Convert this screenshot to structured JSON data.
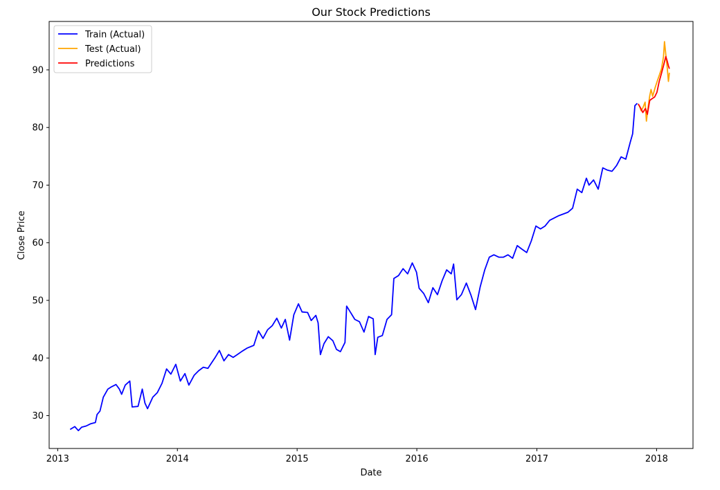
{
  "chart_data": {
    "type": "line",
    "title": "Our Stock Predictions",
    "xlabel": "Date",
    "ylabel": "Close Price",
    "xlim": [
      "2012-12-06",
      "2018-04-22"
    ],
    "ylim": [
      24.3,
      98.4
    ],
    "x_ticks": [
      "2013",
      "2014",
      "2015",
      "2016",
      "2017",
      "2018"
    ],
    "y_ticks": [
      30,
      40,
      50,
      60,
      70,
      80,
      90
    ],
    "grid": false,
    "legend_position": "top-left",
    "series": [
      {
        "name": "Train (Actual)",
        "color": "#0000ff",
        "points": [
          [
            "2013-02-08",
            27.6
          ],
          [
            "2013-02-22",
            28.1
          ],
          [
            "2013-03-05",
            27.4
          ],
          [
            "2013-03-15",
            28.0
          ],
          [
            "2013-03-29",
            28.2
          ],
          [
            "2013-04-12",
            28.6
          ],
          [
            "2013-04-26",
            28.8
          ],
          [
            "2013-05-01",
            30.2
          ],
          [
            "2013-05-10",
            30.8
          ],
          [
            "2013-05-20",
            33.2
          ],
          [
            "2013-06-03",
            34.6
          ],
          [
            "2013-06-14",
            35.0
          ],
          [
            "2013-06-28",
            35.4
          ],
          [
            "2013-07-08",
            34.6
          ],
          [
            "2013-07-15",
            33.7
          ],
          [
            "2013-07-26",
            35.3
          ],
          [
            "2013-08-09",
            36.0
          ],
          [
            "2013-08-16",
            31.5
          ],
          [
            "2013-09-03",
            31.6
          ],
          [
            "2013-09-16",
            34.6
          ],
          [
            "2013-09-24",
            32.2
          ],
          [
            "2013-10-02",
            31.2
          ],
          [
            "2013-10-18",
            33.2
          ],
          [
            "2013-11-01",
            34.0
          ],
          [
            "2013-11-15",
            35.6
          ],
          [
            "2013-11-29",
            38.1
          ],
          [
            "2013-12-12",
            37.2
          ],
          [
            "2013-12-27",
            38.9
          ],
          [
            "2014-01-10",
            36.0
          ],
          [
            "2014-01-24",
            37.3
          ],
          [
            "2014-02-05",
            35.3
          ],
          [
            "2014-02-21",
            37.0
          ],
          [
            "2014-03-07",
            37.8
          ],
          [
            "2014-03-21",
            38.4
          ],
          [
            "2014-04-04",
            38.2
          ],
          [
            "2014-04-25",
            40.0
          ],
          [
            "2014-05-09",
            41.3
          ],
          [
            "2014-05-23",
            39.5
          ],
          [
            "2014-06-06",
            40.6
          ],
          [
            "2014-06-20",
            40.1
          ],
          [
            "2014-07-03",
            40.6
          ],
          [
            "2014-07-18",
            41.2
          ],
          [
            "2014-08-01",
            41.7
          ],
          [
            "2014-08-22",
            42.2
          ],
          [
            "2014-09-05",
            44.7
          ],
          [
            "2014-09-19",
            43.4
          ],
          [
            "2014-10-03",
            44.9
          ],
          [
            "2014-10-17",
            45.6
          ],
          [
            "2014-10-31",
            46.9
          ],
          [
            "2014-11-14",
            45.2
          ],
          [
            "2014-11-26",
            46.7
          ],
          [
            "2014-12-09",
            43.1
          ],
          [
            "2014-12-22",
            47.5
          ],
          [
            "2015-01-05",
            49.4
          ],
          [
            "2015-01-16",
            48.0
          ],
          [
            "2015-02-02",
            47.9
          ],
          [
            "2015-02-13",
            46.5
          ],
          [
            "2015-02-27",
            47.4
          ],
          [
            "2015-03-06",
            46.1
          ],
          [
            "2015-03-13",
            40.6
          ],
          [
            "2015-03-24",
            42.5
          ],
          [
            "2015-04-06",
            43.7
          ],
          [
            "2015-04-20",
            43.0
          ],
          [
            "2015-05-01",
            41.5
          ],
          [
            "2015-05-13",
            41.1
          ],
          [
            "2015-05-27",
            42.7
          ],
          [
            "2015-06-01",
            49.0
          ],
          [
            "2015-06-12",
            48.0
          ],
          [
            "2015-06-26",
            46.7
          ],
          [
            "2015-07-10",
            46.3
          ],
          [
            "2015-07-24",
            44.5
          ],
          [
            "2015-08-07",
            47.2
          ],
          [
            "2015-08-21",
            46.8
          ],
          [
            "2015-08-27",
            40.6
          ],
          [
            "2015-09-04",
            43.6
          ],
          [
            "2015-09-18",
            43.9
          ],
          [
            "2015-10-02",
            46.7
          ],
          [
            "2015-10-16",
            47.5
          ],
          [
            "2015-10-23",
            53.8
          ],
          [
            "2015-11-06",
            54.3
          ],
          [
            "2015-11-20",
            55.5
          ],
          [
            "2015-12-04",
            54.6
          ],
          [
            "2015-12-18",
            56.5
          ],
          [
            "2015-12-31",
            54.9
          ],
          [
            "2016-01-08",
            52.1
          ],
          [
            "2016-01-22",
            51.2
          ],
          [
            "2016-02-05",
            49.6
          ],
          [
            "2016-02-19",
            52.2
          ],
          [
            "2016-03-04",
            51.0
          ],
          [
            "2016-03-18",
            53.4
          ],
          [
            "2016-04-01",
            55.3
          ],
          [
            "2016-04-15",
            54.6
          ],
          [
            "2016-04-22",
            56.3
          ],
          [
            "2016-05-02",
            50.1
          ],
          [
            "2016-05-16",
            51.0
          ],
          [
            "2016-05-31",
            53.0
          ],
          [
            "2016-06-14",
            50.9
          ],
          [
            "2016-06-28",
            48.4
          ],
          [
            "2016-07-12",
            52.3
          ],
          [
            "2016-07-26",
            55.3
          ],
          [
            "2016-08-09",
            57.5
          ],
          [
            "2016-08-23",
            57.9
          ],
          [
            "2016-09-07",
            57.5
          ],
          [
            "2016-09-21",
            57.5
          ],
          [
            "2016-10-05",
            57.9
          ],
          [
            "2016-10-19",
            57.3
          ],
          [
            "2016-11-02",
            59.5
          ],
          [
            "2016-11-16",
            58.9
          ],
          [
            "2016-12-01",
            58.3
          ],
          [
            "2016-12-15",
            60.3
          ],
          [
            "2016-12-29",
            62.9
          ],
          [
            "2017-01-12",
            62.4
          ],
          [
            "2017-01-26",
            62.9
          ],
          [
            "2017-02-09",
            63.9
          ],
          [
            "2017-02-23",
            64.3
          ],
          [
            "2017-03-09",
            64.7
          ],
          [
            "2017-03-23",
            65.0
          ],
          [
            "2017-04-06",
            65.3
          ],
          [
            "2017-04-20",
            66.0
          ],
          [
            "2017-05-04",
            69.3
          ],
          [
            "2017-05-18",
            68.7
          ],
          [
            "2017-06-01",
            71.2
          ],
          [
            "2017-06-09",
            70.0
          ],
          [
            "2017-06-23",
            70.9
          ],
          [
            "2017-07-07",
            69.3
          ],
          [
            "2017-07-21",
            73.0
          ],
          [
            "2017-08-04",
            72.6
          ],
          [
            "2017-08-18",
            72.4
          ],
          [
            "2017-09-01",
            73.4
          ],
          [
            "2017-09-15",
            74.9
          ],
          [
            "2017-09-29",
            74.5
          ],
          [
            "2017-10-13",
            77.5
          ],
          [
            "2017-10-20",
            78.9
          ],
          [
            "2017-10-27",
            83.8
          ],
          [
            "2017-11-03",
            84.2
          ]
        ]
      },
      {
        "name": "Test (Actual)",
        "color": "#ffa500",
        "points": [
          [
            "2017-11-06",
            84.0
          ],
          [
            "2017-11-10",
            83.7
          ],
          [
            "2017-11-15",
            82.9
          ],
          [
            "2017-11-20",
            83.4
          ],
          [
            "2017-11-27",
            84.4
          ],
          [
            "2017-12-01",
            81.1
          ],
          [
            "2017-12-05",
            83.0
          ],
          [
            "2017-12-11",
            85.5
          ],
          [
            "2017-12-15",
            86.6
          ],
          [
            "2017-12-20",
            85.4
          ],
          [
            "2017-12-28",
            87.0
          ],
          [
            "2018-01-04",
            88.2
          ],
          [
            "2018-01-10",
            89.2
          ],
          [
            "2018-01-16",
            90.2
          ],
          [
            "2018-01-22",
            92.3
          ],
          [
            "2018-01-25",
            94.9
          ],
          [
            "2018-01-29",
            92.7
          ],
          [
            "2018-02-02",
            90.6
          ],
          [
            "2018-02-06",
            88.0
          ],
          [
            "2018-02-09",
            89.5
          ]
        ]
      },
      {
        "name": "Predictions",
        "color": "#ff0000",
        "points": [
          [
            "2017-11-06",
            84.1
          ],
          [
            "2017-11-13",
            83.4
          ],
          [
            "2017-11-20",
            82.6
          ],
          [
            "2017-11-28",
            83.3
          ],
          [
            "2017-12-04",
            82.3
          ],
          [
            "2017-12-11",
            84.7
          ],
          [
            "2017-12-18",
            85.0
          ],
          [
            "2017-12-26",
            85.3
          ],
          [
            "2018-01-02",
            86.1
          ],
          [
            "2018-01-09",
            88.0
          ],
          [
            "2018-01-16",
            89.4
          ],
          [
            "2018-01-23",
            90.9
          ],
          [
            "2018-01-29",
            92.3
          ],
          [
            "2018-02-02",
            91.6
          ],
          [
            "2018-02-06",
            90.7
          ],
          [
            "2018-02-09",
            90.2
          ]
        ]
      }
    ]
  }
}
